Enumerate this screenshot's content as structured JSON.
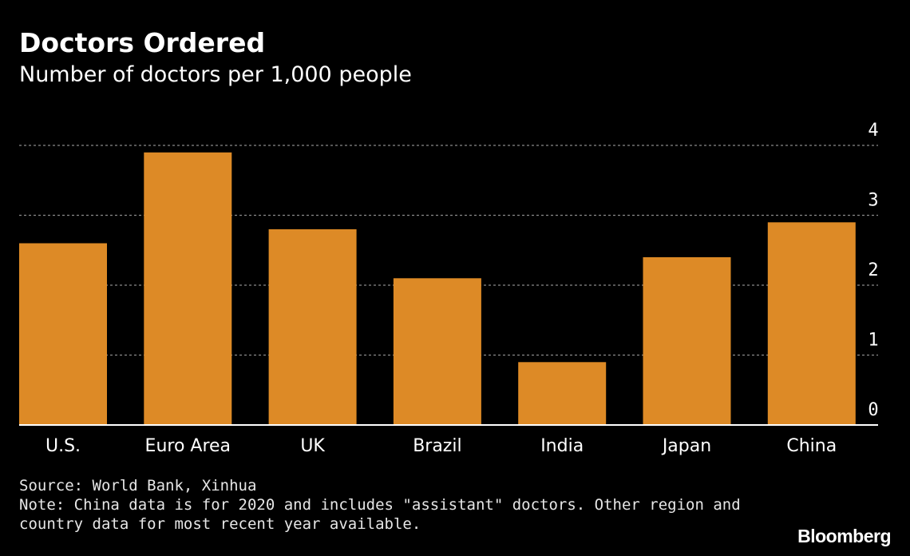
{
  "chart_data": {
    "type": "bar",
    "title": "Doctors Ordered",
    "subtitle": "Number of doctors per 1,000 people",
    "categories": [
      "U.S.",
      "Euro Area",
      "UK",
      "Brazil",
      "India",
      "Japan",
      "China"
    ],
    "values": [
      2.6,
      3.9,
      2.8,
      2.1,
      0.9,
      2.4,
      2.9
    ],
    "y_ticks": [
      "0",
      "1",
      "2",
      "3",
      "4"
    ],
    "ylim": [
      0,
      4
    ],
    "grid": true,
    "bar_color": "#dd8a26",
    "grid_color": "#8a8a8a",
    "axis_color": "#ffffff"
  },
  "source": "Source: World Bank, Xinhua",
  "note_line1": "Note: China data is for 2020 and includes \"assistant\" doctors. Other region and",
  "note_line2": "country data for most recent year available.",
  "brand": "Bloomberg"
}
